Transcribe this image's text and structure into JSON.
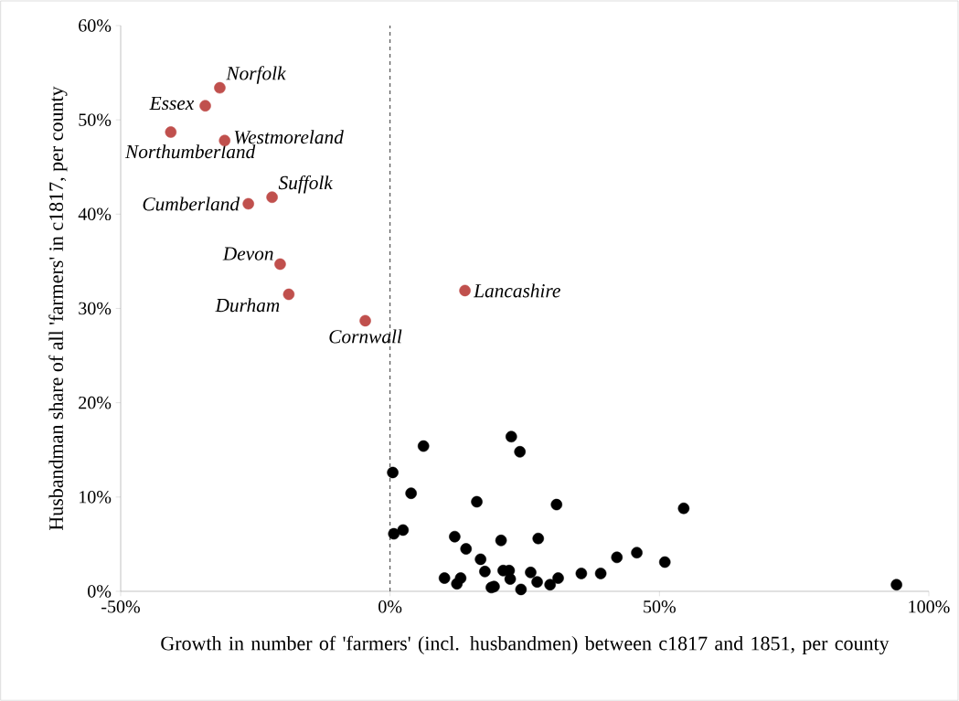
{
  "chart_data": {
    "type": "scatter",
    "xlabel": "Growth in number of 'farmers' (incl. husbandmen) between c1817 and 1851, per county",
    "ylabel": "Husbandman share of all 'farmers' in c1817, per county",
    "marker": "circle",
    "grid": false,
    "xlim": [
      -50,
      100
    ],
    "xticks": [
      {
        "value": -50,
        "label": "-50%"
      },
      {
        "value": 0,
        "label": "0%"
      },
      {
        "value": 50,
        "label": "50%"
      },
      {
        "value": 100,
        "label": "100%"
      }
    ],
    "ylim": [
      0,
      60
    ],
    "yticks": [
      {
        "value": 0,
        "label": "0%"
      },
      {
        "value": 10,
        "label": "10%"
      },
      {
        "value": 20,
        "label": "20%"
      },
      {
        "value": 30,
        "label": "30%"
      },
      {
        "value": 40,
        "label": "40%"
      },
      {
        "value": 50,
        "label": "50%"
      },
      {
        "value": 60,
        "label": "60%"
      }
    ],
    "ref_lines": [
      {
        "axis": "x",
        "value": 0,
        "line_style": "dashed",
        "color": "#000000"
      }
    ],
    "series": [
      {
        "color": "#c0504d",
        "x": [
          -31.6,
          -34.3,
          -40.7,
          -30.7,
          -26.3,
          -21.9,
          -20.4,
          -18.8,
          -4.6,
          13.9
        ],
        "values": [
          53.4,
          51.5,
          48.7,
          47.8,
          41.1,
          41.8,
          34.7,
          31.5,
          28.7,
          31.9
        ]
      },
      {
        "color": "#000000",
        "x": [
          22.5,
          24.1,
          6.2,
          0.5,
          3.9,
          16.1,
          30.9,
          54.5,
          0.7,
          2.4,
          12.0,
          20.6,
          27.5,
          14.1,
          16.8,
          42.1,
          45.8,
          51.0,
          17.6,
          21.0,
          22.1,
          26.1,
          35.5,
          39.1,
          10.1,
          13.1,
          12.4,
          22.3,
          27.3,
          31.2,
          29.7,
          18.8,
          19.3,
          24.3,
          94.0
        ],
        "values": [
          16.4,
          14.8,
          15.4,
          12.6,
          10.4,
          9.5,
          9.2,
          8.8,
          6.1,
          6.5,
          5.8,
          5.4,
          5.6,
          4.5,
          3.4,
          3.6,
          4.1,
          3.1,
          2.1,
          2.2,
          2.2,
          2.0,
          1.9,
          1.9,
          1.4,
          1.4,
          0.8,
          1.3,
          1.0,
          1.4,
          0.7,
          0.4,
          0.5,
          0.2,
          0.7
        ]
      }
    ],
    "annotations": [
      {
        "text": "Norfolk",
        "x": -31.6,
        "y": 53.4
      },
      {
        "text": "Essex",
        "x": -34.3,
        "y": 51.5
      },
      {
        "text": "Northumberland",
        "x": -40.7,
        "y": 48.7
      },
      {
        "text": "Westmoreland",
        "x": -30.7,
        "y": 47.8
      },
      {
        "text": "Cumberland",
        "x": -26.3,
        "y": 41.1
      },
      {
        "text": "Suffolk",
        "x": -21.9,
        "y": 41.8
      },
      {
        "text": "Devon",
        "x": -20.4,
        "y": 34.7
      },
      {
        "text": "Durham",
        "x": -18.8,
        "y": 31.5
      },
      {
        "text": "Cornwall",
        "x": -4.6,
        "y": 28.7
      },
      {
        "text": "Lancashire",
        "x": 13.9,
        "y": 31.9
      }
    ]
  }
}
